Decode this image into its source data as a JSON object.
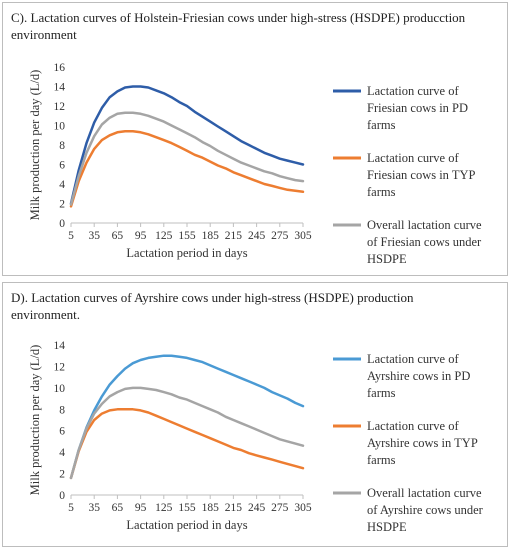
{
  "chart_data": [
    {
      "type": "line",
      "title": "C). Lactation curves of Holstein-Friesian cows under high-stress (HSDPE) producction environment",
      "xlabel": "Lactation period in days",
      "ylabel": "Milk production per day (L/d)",
      "xticks": [
        5,
        35,
        65,
        95,
        125,
        155,
        185,
        215,
        245,
        275,
        305
      ],
      "xlim": [
        5,
        305
      ],
      "ylim": [
        0,
        16
      ],
      "ystep": 2,
      "legend_position": "right",
      "grid": false,
      "x": [
        5,
        15,
        25,
        35,
        45,
        55,
        65,
        75,
        85,
        95,
        105,
        115,
        125,
        135,
        145,
        155,
        165,
        175,
        185,
        195,
        205,
        215,
        225,
        235,
        245,
        255,
        265,
        275,
        285,
        295,
        305
      ],
      "series": [
        {
          "name": "Lactation curve of Friesian cows in PD farms",
          "color": "#2e5da8",
          "values": [
            2.0,
            5.4,
            8.2,
            10.3,
            11.8,
            12.9,
            13.5,
            13.9,
            14.0,
            14.0,
            13.9,
            13.6,
            13.3,
            12.9,
            12.4,
            12.0,
            11.4,
            10.9,
            10.4,
            9.9,
            9.4,
            8.9,
            8.4,
            8.0,
            7.6,
            7.2,
            6.9,
            6.6,
            6.4,
            6.2,
            6.0
          ]
        },
        {
          "name": "Lactation curve of Friesian cows in TYP farms",
          "color": "#ed7d31",
          "values": [
            1.7,
            4.3,
            6.2,
            7.6,
            8.5,
            9.0,
            9.3,
            9.4,
            9.4,
            9.3,
            9.1,
            8.8,
            8.5,
            8.2,
            7.8,
            7.4,
            7.0,
            6.7,
            6.3,
            5.9,
            5.6,
            5.2,
            4.9,
            4.6,
            4.3,
            4.0,
            3.8,
            3.6,
            3.4,
            3.3,
            3.2
          ]
        },
        {
          "name": "Overall lactation curve of Friesian cows under HSDPE",
          "color": "#a5a5a5",
          "values": [
            1.9,
            4.8,
            7.2,
            8.9,
            10.1,
            10.8,
            11.2,
            11.3,
            11.3,
            11.2,
            11.0,
            10.7,
            10.4,
            10.0,
            9.6,
            9.2,
            8.8,
            8.3,
            7.9,
            7.4,
            7.0,
            6.6,
            6.2,
            5.9,
            5.6,
            5.3,
            5.1,
            4.8,
            4.6,
            4.4,
            4.3
          ]
        }
      ]
    },
    {
      "type": "line",
      "title": "D). Lactation curves of Ayrshire cows under high-stress (HSDPE) production environment.",
      "xlabel": "Lactation period in days",
      "ylabel": "Milk production per day (L/d)",
      "xticks": [
        5,
        35,
        65,
        95,
        125,
        155,
        185,
        215,
        245,
        275,
        305
      ],
      "xlim": [
        5,
        305
      ],
      "ylim": [
        0,
        14
      ],
      "ystep": 2,
      "legend_position": "right",
      "grid": false,
      "x": [
        5,
        15,
        25,
        35,
        45,
        55,
        65,
        75,
        85,
        95,
        105,
        115,
        125,
        135,
        145,
        155,
        165,
        175,
        185,
        195,
        205,
        215,
        225,
        235,
        245,
        255,
        265,
        275,
        285,
        295,
        305
      ],
      "series": [
        {
          "name": "Lactation curve of Ayrshire cows in PD farms",
          "color": "#4a9ad4",
          "values": [
            1.6,
            4.2,
            6.3,
            7.9,
            9.2,
            10.3,
            11.1,
            11.8,
            12.3,
            12.6,
            12.8,
            12.9,
            13.0,
            13.0,
            12.9,
            12.8,
            12.6,
            12.4,
            12.1,
            11.8,
            11.5,
            11.2,
            10.9,
            10.6,
            10.3,
            10.0,
            9.6,
            9.3,
            9.0,
            8.6,
            8.3
          ]
        },
        {
          "name": "Lactation curve of Ayrshire cows in TYP farms",
          "color": "#ed7d31",
          "values": [
            1.6,
            4.1,
            5.9,
            7.0,
            7.6,
            7.9,
            8.0,
            8.0,
            8.0,
            7.9,
            7.7,
            7.4,
            7.1,
            6.8,
            6.5,
            6.2,
            5.9,
            5.6,
            5.3,
            5.0,
            4.7,
            4.4,
            4.2,
            3.9,
            3.7,
            3.5,
            3.3,
            3.1,
            2.9,
            2.7,
            2.5
          ]
        },
        {
          "name": "Overall lactation curve of Ayrshire cows under HSDPE",
          "color": "#a5a5a5",
          "values": [
            1.6,
            4.2,
            6.2,
            7.6,
            8.5,
            9.2,
            9.6,
            9.9,
            10.0,
            10.0,
            9.9,
            9.8,
            9.6,
            9.4,
            9.1,
            8.9,
            8.6,
            8.3,
            8.0,
            7.7,
            7.3,
            7.0,
            6.7,
            6.4,
            6.1,
            5.8,
            5.5,
            5.2,
            5.0,
            4.8,
            4.6
          ]
        }
      ]
    }
  ]
}
